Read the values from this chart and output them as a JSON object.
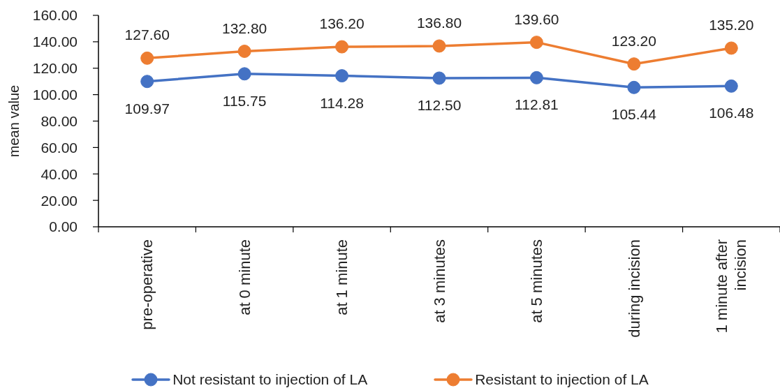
{
  "chart_data": {
    "type": "line",
    "ylabel": "mean value",
    "categories": [
      "pre-operative",
      "at 0 minute",
      "at 1 minute",
      "at 3 minutes",
      "at 5 minutes",
      "during incision",
      "1 minute after incision"
    ],
    "series": [
      {
        "name": "Not resistant to injection of LA",
        "color": "#4472c4",
        "values": [
          109.97,
          115.75,
          114.28,
          112.5,
          112.81,
          105.44,
          106.48
        ],
        "value_labels": [
          "109.97",
          "115.75",
          "114.28",
          "112.50",
          "112.81",
          "105.44",
          "106.48"
        ]
      },
      {
        "name": "Resistant to injection of LA",
        "color": "#ed7d31",
        "values": [
          127.6,
          132.8,
          136.2,
          136.8,
          139.6,
          123.2,
          135.2
        ],
        "value_labels": [
          "127.60",
          "132.80",
          "136.20",
          "136.80",
          "139.60",
          "123.20",
          "135.20"
        ]
      }
    ],
    "ylim": [
      0,
      160
    ],
    "yticks": [
      {
        "value": 0,
        "label": "0.00"
      },
      {
        "value": 20,
        "label": "20.00"
      },
      {
        "value": 40,
        "label": "40.00"
      },
      {
        "value": 60,
        "label": "60.00"
      },
      {
        "value": 80,
        "label": "80.00"
      },
      {
        "value": 100,
        "label": "100.00"
      },
      {
        "value": 120,
        "label": "120.00"
      },
      {
        "value": 140,
        "label": "140.00"
      },
      {
        "value": 160,
        "label": "160.00"
      }
    ],
    "legend": "bottom",
    "marker": "circle",
    "line_style": "solid"
  }
}
